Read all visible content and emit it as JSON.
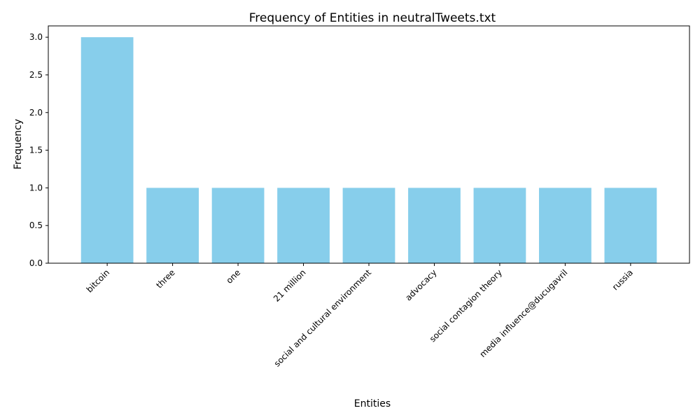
{
  "chart_data": {
    "type": "bar",
    "title": "Frequency of Entities in neutralTweets.txt",
    "xlabel": "Entities",
    "ylabel": "Frequency",
    "categories": [
      "bitcoin",
      "three",
      "one",
      "21 million",
      "social and cultural environment",
      "advocacy",
      "social contagion theory",
      "media influence@ducugavril",
      "russia"
    ],
    "values": [
      3,
      1,
      1,
      1,
      1,
      1,
      1,
      1,
      1
    ],
    "ylim": [
      0,
      3.15
    ],
    "yticks": [
      "0.0",
      "0.5",
      "1.0",
      "1.5",
      "2.0",
      "2.5",
      "3.0"
    ],
    "grid": false,
    "bar_color": "#87ceeb"
  }
}
